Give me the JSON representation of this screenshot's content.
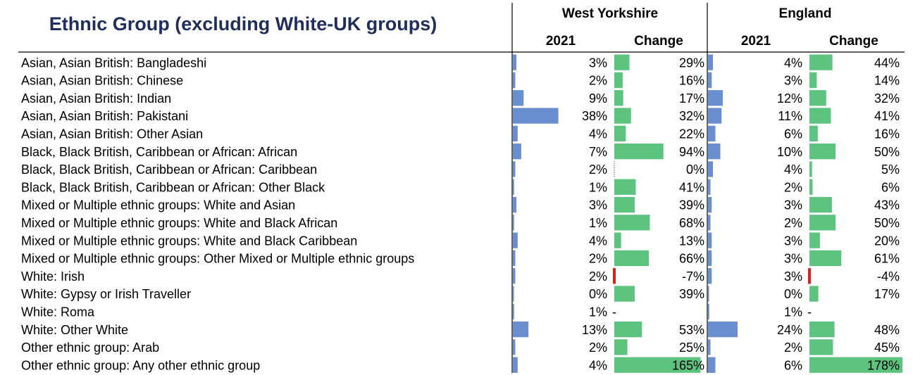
{
  "chart_data": {
    "type": "table",
    "title": "Ethnic Group (excluding White-UK groups)",
    "groups": [
      {
        "name": "West Yorkshire",
        "columns": [
          "2021",
          "Change"
        ]
      },
      {
        "name": "England",
        "columns": [
          "2021",
          "Change"
        ]
      }
    ],
    "categories": [
      "Asian, Asian British: Bangladeshi",
      "Asian, Asian British: Chinese",
      "Asian, Asian British: Indian",
      "Asian, Asian British: Pakistani",
      "Asian, Asian British: Other Asian",
      "Black, Black British, Caribbean or African: African",
      "Black, Black British, Caribbean or African: Caribbean",
      "Black, Black British, Caribbean or African: Other Black",
      "Mixed or Multiple ethnic groups: White and Asian",
      "Mixed or Multiple ethnic groups: White and Black African",
      "Mixed or Multiple ethnic groups: White and Black Caribbean",
      "Mixed or Multiple ethnic groups: Other Mixed or Multiple ethnic groups",
      "White: Irish",
      "White: Gypsy or Irish Traveller",
      "White: Roma",
      "White: Other White",
      "Other ethnic group: Arab",
      "Other ethnic group: Any other ethnic group"
    ],
    "wy_2021": [
      "3%",
      "2%",
      "9%",
      "38%",
      "4%",
      "7%",
      "2%",
      "1%",
      "3%",
      "1%",
      "4%",
      "2%",
      "2%",
      "0%",
      "1%",
      "13%",
      "2%",
      "4%"
    ],
    "wy_2021_values": [
      3,
      2,
      9,
      38,
      4,
      7,
      2,
      1,
      3,
      1,
      4,
      2,
      2,
      0.3,
      1,
      13,
      2,
      4
    ],
    "wy_change": [
      "29%",
      "16%",
      "17%",
      "32%",
      "22%",
      "94%",
      "0%",
      "41%",
      "39%",
      "68%",
      "13%",
      "66%",
      "-7%",
      "39%",
      "-",
      "53%",
      "25%",
      "165%"
    ],
    "wy_change_values": [
      29,
      16,
      17,
      32,
      22,
      94,
      0,
      41,
      39,
      68,
      13,
      66,
      -7,
      39,
      null,
      53,
      25,
      165
    ],
    "eng_2021": [
      "4%",
      "3%",
      "12%",
      "11%",
      "6%",
      "10%",
      "4%",
      "2%",
      "3%",
      "2%",
      "3%",
      "3%",
      "3%",
      "0%",
      "1%",
      "24%",
      "2%",
      "6%"
    ],
    "eng_2021_values": [
      4,
      3,
      12,
      11,
      6,
      10,
      4,
      2,
      3,
      2,
      3,
      3,
      3,
      0.3,
      1,
      24,
      2,
      6
    ],
    "eng_change": [
      "44%",
      "14%",
      "32%",
      "41%",
      "16%",
      "50%",
      "5%",
      "6%",
      "43%",
      "50%",
      "20%",
      "61%",
      "-4%",
      "17%",
      "-",
      "48%",
      "45%",
      "178%"
    ],
    "eng_change_values": [
      44,
      14,
      32,
      41,
      16,
      50,
      5,
      6,
      43,
      50,
      20,
      61,
      -4,
      17,
      null,
      48,
      45,
      178
    ],
    "colors": {
      "share_bar": "#6a8fd0",
      "positive_change": "#5cc47e",
      "negative_change": "#d9221c",
      "title": "#1f2e5a"
    }
  }
}
